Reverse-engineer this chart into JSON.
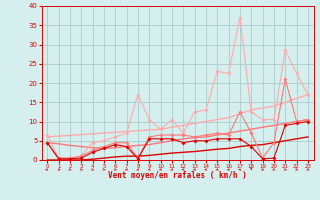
{
  "x_values": [
    0,
    1,
    2,
    3,
    4,
    5,
    6,
    7,
    8,
    9,
    10,
    11,
    12,
    13,
    14,
    15,
    16,
    17,
    18,
    19,
    20,
    21,
    22,
    23
  ],
  "line_max_gust": [
    6.5,
    0.5,
    0.5,
    1.0,
    4.5,
    5.0,
    6.0,
    7.0,
    17.0,
    10.5,
    8.0,
    10.5,
    7.0,
    12.5,
    13.0,
    23.0,
    22.5,
    37.0,
    12.5,
    10.5,
    10.5,
    28.5,
    22.5,
    17.0
  ],
  "line_avg": [
    4.5,
    0.5,
    0.5,
    1.0,
    2.5,
    3.5,
    4.5,
    4.5,
    0.5,
    6.0,
    6.5,
    6.5,
    6.5,
    6.0,
    6.5,
    7.0,
    6.5,
    12.5,
    7.0,
    0.5,
    4.5,
    21.0,
    10.0,
    10.5
  ],
  "line_dark": [
    4.5,
    0.3,
    0.3,
    0.5,
    2.0,
    3.0,
    4.0,
    3.5,
    0.3,
    5.5,
    5.5,
    5.5,
    4.5,
    5.0,
    5.0,
    5.5,
    5.5,
    5.5,
    3.5,
    0.3,
    0.5,
    9.0,
    9.5,
    10.0
  ],
  "line_trend_gust": [
    6.0,
    6.2,
    6.4,
    6.6,
    6.8,
    7.0,
    7.2,
    7.4,
    7.6,
    7.8,
    8.0,
    8.5,
    9.0,
    9.5,
    10.0,
    10.5,
    11.0,
    12.0,
    13.0,
    13.5,
    14.0,
    15.0,
    16.0,
    17.0
  ],
  "line_trend_avg": [
    4.5,
    4.2,
    3.8,
    3.5,
    3.2,
    3.0,
    3.2,
    3.5,
    3.8,
    4.0,
    4.5,
    5.0,
    5.5,
    5.8,
    6.0,
    6.5,
    7.0,
    7.5,
    8.0,
    8.5,
    9.0,
    9.5,
    10.0,
    10.5
  ],
  "line_trend_dark": [
    0.0,
    0.0,
    0.0,
    0.0,
    0.2,
    0.5,
    0.8,
    1.0,
    1.0,
    1.2,
    1.5,
    1.8,
    2.0,
    2.2,
    2.5,
    2.8,
    3.0,
    3.5,
    3.8,
    4.0,
    4.5,
    5.0,
    5.5,
    6.0
  ],
  "wind_arrows": [
    [
      0,
      270
    ],
    [
      1,
      90
    ],
    [
      2,
      135
    ],
    [
      3,
      135
    ],
    [
      4,
      135
    ],
    [
      5,
      135
    ],
    [
      6,
      135
    ],
    [
      7,
      225
    ],
    [
      8,
      225
    ],
    [
      9,
      225
    ],
    [
      10,
      225
    ],
    [
      11,
      225
    ],
    [
      12,
      225
    ],
    [
      13,
      225
    ],
    [
      14,
      225
    ],
    [
      15,
      225
    ],
    [
      16,
      225
    ],
    [
      17,
      315
    ],
    [
      18,
      180
    ],
    [
      19,
      135
    ],
    [
      20,
      135
    ],
    [
      21,
      135
    ],
    [
      22,
      135
    ],
    [
      23,
      135
    ]
  ],
  "bg_color": "#d5eeee",
  "grid_color": "#aacccc",
  "color_light": "#ffaaaa",
  "color_medium": "#ff7777",
  "color_dark": "#dd0000",
  "xlabel": "Vent moyen/en rafales ( km/h )",
  "ylim": [
    0,
    40
  ],
  "xlim": [
    0,
    23
  ],
  "yticks": [
    0,
    5,
    10,
    15,
    20,
    25,
    30,
    35,
    40
  ],
  "xticks": [
    0,
    1,
    2,
    3,
    4,
    5,
    6,
    7,
    8,
    9,
    10,
    11,
    12,
    13,
    14,
    15,
    16,
    17,
    18,
    19,
    20,
    21,
    22,
    23
  ]
}
